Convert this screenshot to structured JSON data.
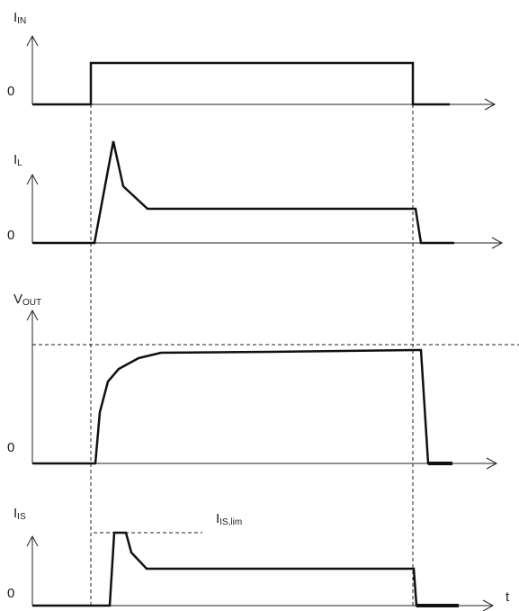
{
  "diagram": {
    "panels": [
      {
        "id": "iin",
        "label_main": "I",
        "label_sub": "IN",
        "zero": "0"
      },
      {
        "id": "il",
        "label_main": "I",
        "label_sub": "L",
        "zero": "0"
      },
      {
        "id": "vout",
        "label_main": "V",
        "label_sub": "OUT",
        "zero": "0"
      },
      {
        "id": "iis",
        "label_main": "I",
        "label_sub": "IS",
        "zero": "0"
      }
    ],
    "limit_label": {
      "main": "I",
      "sub": "IS,lim"
    },
    "time_axis_label": "t"
  }
}
